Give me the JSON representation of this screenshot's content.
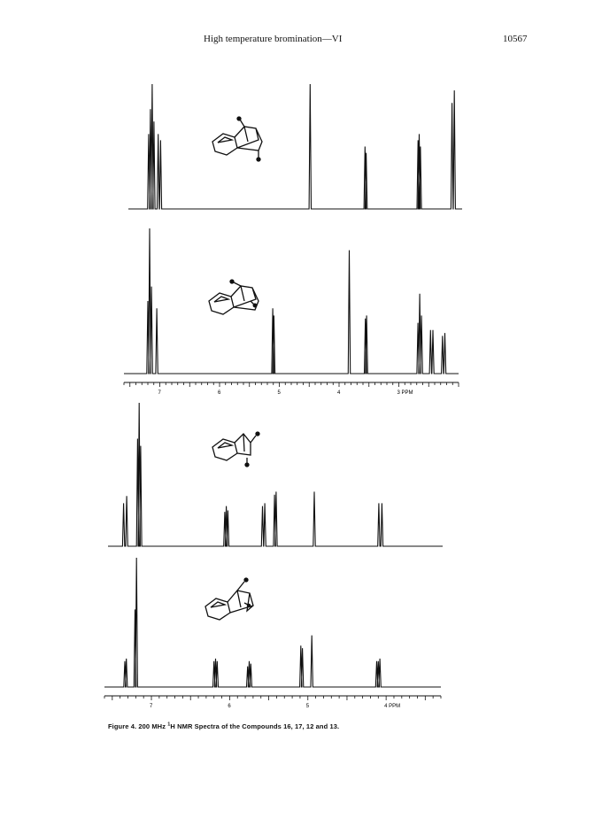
{
  "header": {
    "running_title": "High temperature bromination—VI",
    "page_number": "10567"
  },
  "figure": {
    "caption_prefix": "Figure 4. 200 MHz ",
    "caption_sup": "1",
    "caption_rest": "H NMR Spectra of the Compounds 16, 17, 12 and 13.",
    "spectra": [
      {
        "ppm_min": 2.0,
        "ppm_max": 7.6,
        "multiplets": [
          {
            "ppm": 7.22,
            "offsets": [
              -0.05,
              -0.02,
              0.01,
              0.04
            ],
            "rel": [
              0.7,
              1.0,
              0.8,
              0.6
            ]
          },
          {
            "ppm": 7.08,
            "offsets": [
              -0.02,
              0.02
            ],
            "rel": [
              0.55,
              0.6
            ]
          },
          {
            "ppm": 4.55,
            "offsets": [
              0.0
            ],
            "rel": [
              1.0
            ]
          },
          {
            "ppm": 3.62,
            "offsets": [
              -0.01,
              0.01
            ],
            "rel": [
              0.45,
              0.5
            ]
          },
          {
            "ppm": 2.72,
            "offsets": [
              -0.02,
              0.0,
              0.02
            ],
            "rel": [
              0.5,
              0.6,
              0.55
            ]
          },
          {
            "ppm": 2.15,
            "offsets": [
              -0.02,
              0.02
            ],
            "rel": [
              0.95,
              0.85
            ]
          }
        ]
      },
      {
        "ppm_min": 2.0,
        "ppm_max": 7.6,
        "tick_labels": [
          "7",
          "6",
          "5",
          "4",
          "3 PPM"
        ],
        "tick_values": [
          7,
          6,
          5,
          4,
          3
        ],
        "multiplets": [
          {
            "ppm": 7.18,
            "offsets": [
              -0.04,
              -0.01,
              0.02
            ],
            "rel": [
              0.6,
              1.0,
              0.5
            ]
          },
          {
            "ppm": 7.05,
            "offsets": [
              0.0
            ],
            "rel": [
              0.45
            ]
          },
          {
            "ppm": 5.1,
            "offsets": [
              -0.01,
              0.01
            ],
            "rel": [
              0.4,
              0.45
            ]
          },
          {
            "ppm": 3.83,
            "offsets": [
              0.0
            ],
            "rel": [
              0.85
            ]
          },
          {
            "ppm": 3.55,
            "offsets": [
              -0.01,
              0.01
            ],
            "rel": [
              0.4,
              0.38
            ]
          },
          {
            "ppm": 2.65,
            "offsets": [
              -0.03,
              0.0,
              0.03
            ],
            "rel": [
              0.4,
              0.55,
              0.35
            ]
          },
          {
            "ppm": 2.45,
            "offsets": [
              -0.02,
              0.02
            ],
            "rel": [
              0.3,
              0.3
            ]
          },
          {
            "ppm": 2.25,
            "offsets": [
              -0.02,
              0.02
            ],
            "rel": [
              0.28,
              0.26
            ]
          }
        ]
      },
      {
        "ppm_min": 3.3,
        "ppm_max": 7.6,
        "multiplets": [
          {
            "ppm": 7.38,
            "offsets": [
              -0.02,
              0.02
            ],
            "rel": [
              0.35,
              0.3
            ]
          },
          {
            "ppm": 7.2,
            "offsets": [
              -0.02,
              0.0,
              0.02
            ],
            "rel": [
              0.7,
              1.0,
              0.75
            ]
          },
          {
            "ppm": 6.08,
            "offsets": [
              -0.02,
              0.0,
              0.02
            ],
            "rel": [
              0.25,
              0.28,
              0.24
            ]
          },
          {
            "ppm": 5.6,
            "offsets": [
              -0.015,
              0.015
            ],
            "rel": [
              0.3,
              0.28
            ]
          },
          {
            "ppm": 5.45,
            "offsets": [
              -0.01,
              0.01
            ],
            "rel": [
              0.38,
              0.36
            ]
          },
          {
            "ppm": 4.95,
            "offsets": [
              0.0
            ],
            "rel": [
              0.38
            ]
          },
          {
            "ppm": 4.1,
            "offsets": [
              -0.02,
              0.02
            ],
            "rel": [
              0.3,
              0.3
            ]
          }
        ]
      },
      {
        "ppm_min": 3.3,
        "ppm_max": 7.6,
        "tick_labels": [
          "7",
          "6",
          "5",
          "4 PPM"
        ],
        "tick_values": [
          7,
          6,
          5,
          4
        ],
        "multiplets": [
          {
            "ppm": 7.33,
            "offsets": [
              -0.01,
              0.01
            ],
            "rel": [
              0.22,
              0.2
            ]
          },
          {
            "ppm": 7.2,
            "offsets": [
              -0.01,
              0.01
            ],
            "rel": [
              1.0,
              0.6
            ]
          },
          {
            "ppm": 6.18,
            "offsets": [
              -0.02,
              0.0,
              0.02
            ],
            "rel": [
              0.2,
              0.22,
              0.2
            ]
          },
          {
            "ppm": 5.75,
            "offsets": [
              -0.02,
              0.0,
              0.02
            ],
            "rel": [
              0.18,
              0.2,
              0.16
            ]
          },
          {
            "ppm": 5.08,
            "offsets": [
              -0.01,
              0.01
            ],
            "rel": [
              0.3,
              0.32
            ]
          },
          {
            "ppm": 4.95,
            "offsets": [
              0.0
            ],
            "rel": [
              0.4
            ]
          },
          {
            "ppm": 4.1,
            "offsets": [
              -0.02,
              0.0,
              0.02
            ],
            "rel": [
              0.22,
              0.2,
              0.2
            ]
          }
        ]
      }
    ]
  }
}
